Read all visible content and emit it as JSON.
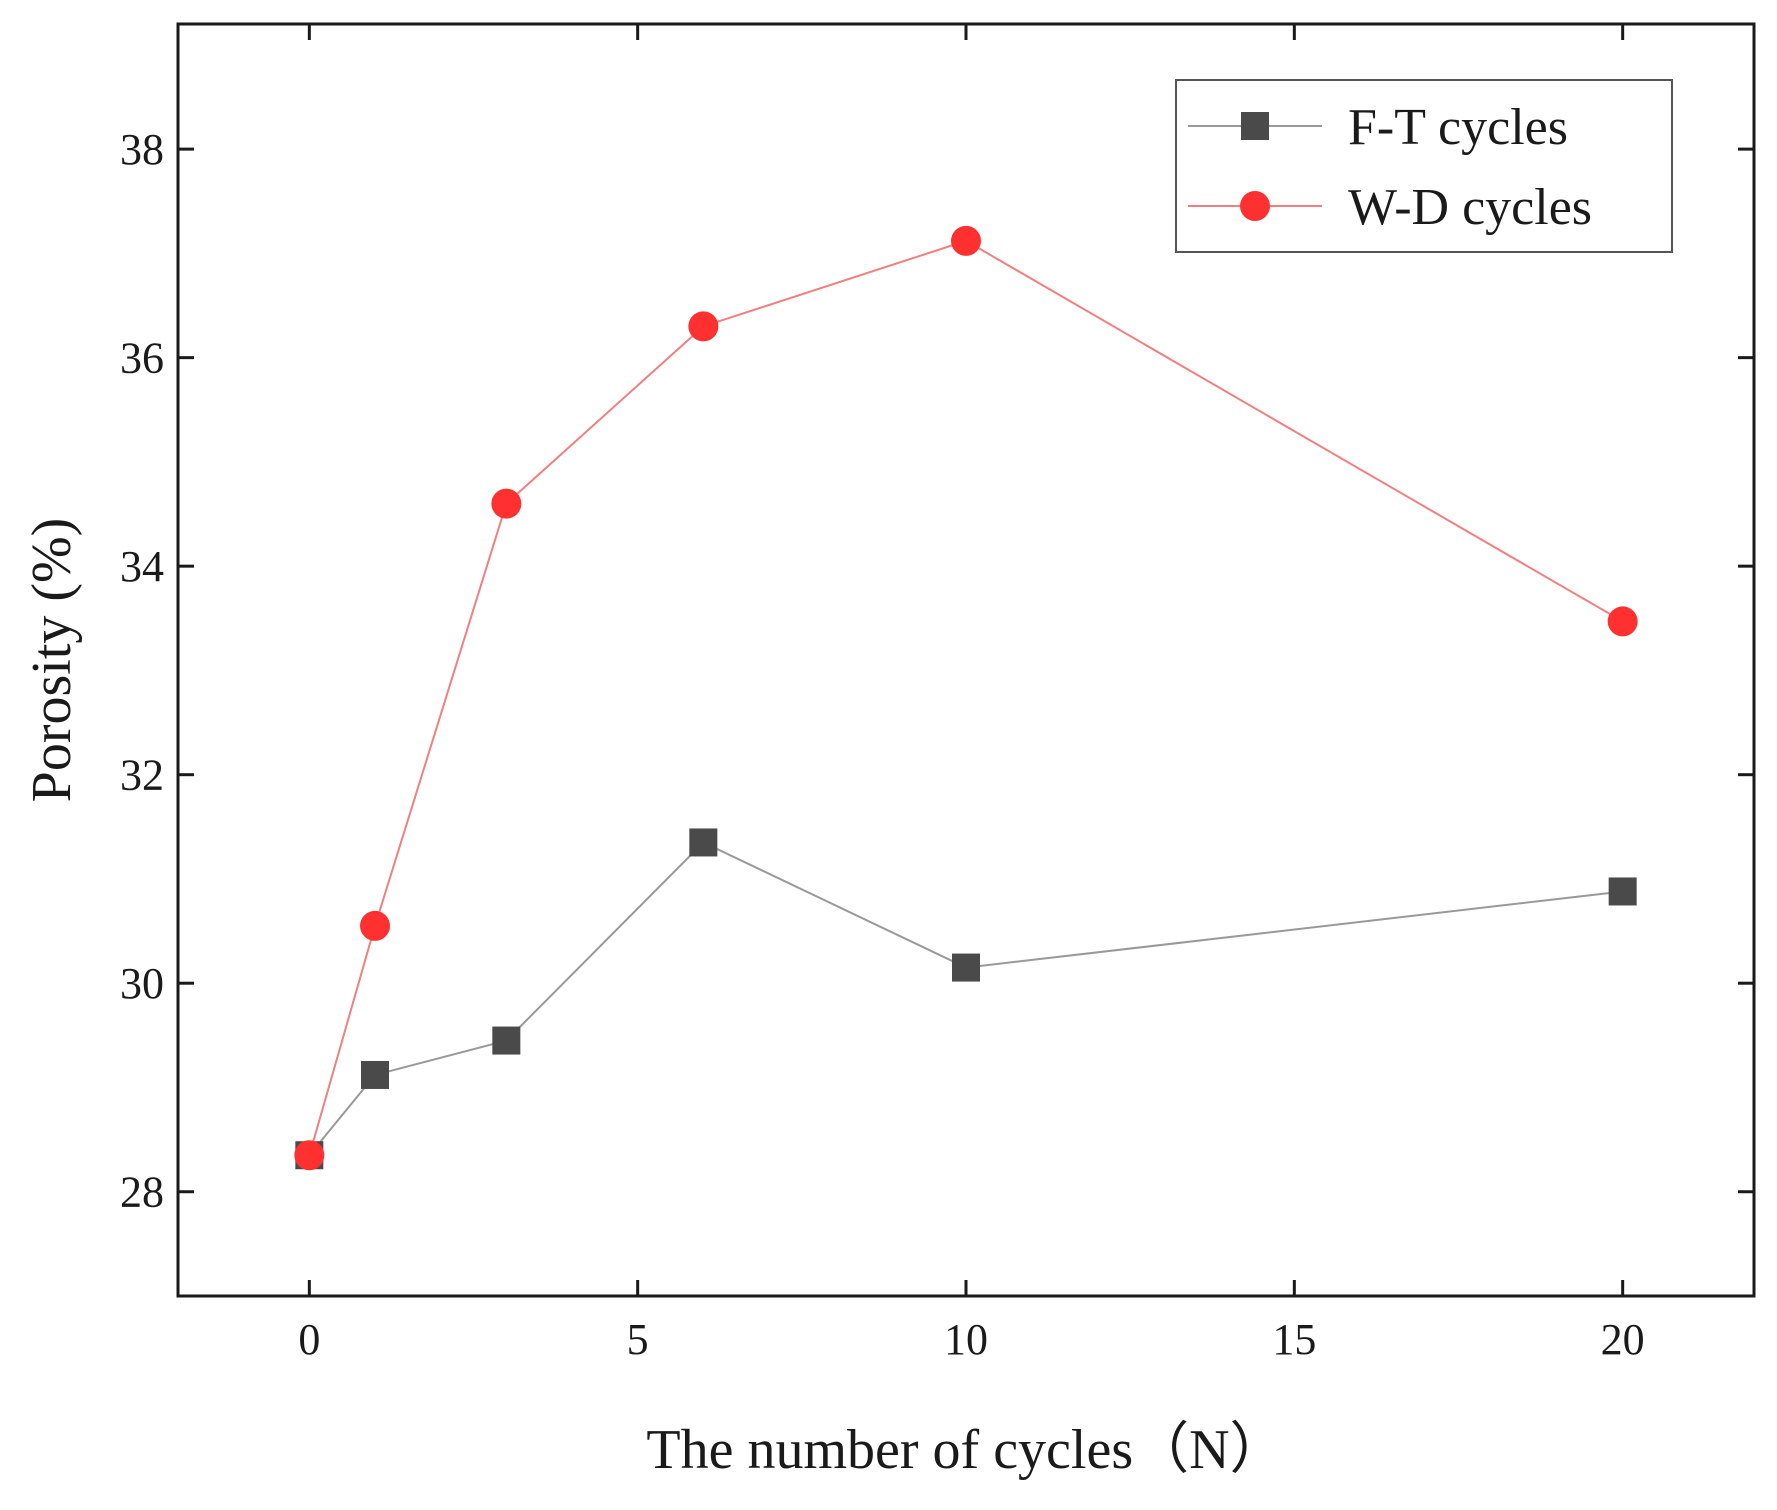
{
  "chart_data": {
    "type": "line",
    "title": "",
    "xlabel": "The number of cycles（N）",
    "ylabel": "Porosity (%)",
    "xlim": [
      -2,
      22
    ],
    "ylim": [
      27,
      39.2
    ],
    "xticks": [
      0,
      5,
      10,
      15,
      20
    ],
    "yticks": [
      28,
      30,
      32,
      34,
      36,
      38
    ],
    "grid": false,
    "legend_position": "top-right",
    "series": [
      {
        "name": "F-T cycles",
        "marker": "square",
        "color": "#4a4a4a",
        "line_color": "#999999",
        "x": [
          0,
          1,
          3,
          6,
          10,
          20
        ],
        "y": [
          28.35,
          29.12,
          29.45,
          31.35,
          30.15,
          30.88
        ]
      },
      {
        "name": "W-D cycles",
        "marker": "circle",
        "color": "#ff3030",
        "line_color": "#f08080",
        "x": [
          0,
          1,
          3,
          6,
          10,
          20
        ],
        "y": [
          28.35,
          30.55,
          34.6,
          36.3,
          37.12,
          33.47
        ]
      }
    ]
  }
}
